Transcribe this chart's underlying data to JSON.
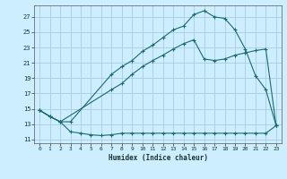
{
  "xlabel": "Humidex (Indice chaleur)",
  "bg_color": "#cceeff",
  "grid_color": "#aaccdd",
  "line_color": "#1a6b6b",
  "xlim": [
    -0.5,
    23.5
  ],
  "ylim": [
    10.5,
    28.5
  ],
  "xticks": [
    0,
    1,
    2,
    3,
    4,
    5,
    6,
    7,
    8,
    9,
    10,
    11,
    12,
    13,
    14,
    15,
    16,
    17,
    18,
    19,
    20,
    21,
    22,
    23
  ],
  "yticks": [
    11,
    13,
    15,
    17,
    19,
    21,
    23,
    25,
    27
  ],
  "line1_x": [
    0,
    1,
    2,
    3,
    4,
    5,
    6,
    7,
    8,
    9,
    10,
    11,
    12,
    13,
    14,
    15,
    16,
    17,
    18,
    19,
    20,
    21,
    22,
    23
  ],
  "line1_y": [
    14.8,
    14.0,
    13.3,
    12.0,
    11.8,
    11.6,
    11.5,
    11.6,
    11.8,
    11.8,
    11.8,
    11.8,
    11.8,
    11.8,
    11.8,
    11.8,
    11.8,
    11.8,
    11.8,
    11.8,
    11.8,
    11.8,
    11.8,
    12.8
  ],
  "line2_x": [
    0,
    1,
    2,
    7,
    8,
    9,
    10,
    11,
    12,
    13,
    14,
    15,
    16,
    17,
    18,
    19,
    20,
    21,
    22,
    23
  ],
  "line2_y": [
    14.8,
    14.0,
    13.3,
    17.5,
    18.3,
    19.5,
    20.5,
    21.3,
    22.0,
    22.8,
    23.5,
    24.0,
    21.5,
    21.3,
    21.5,
    22.0,
    22.3,
    22.6,
    22.8,
    12.8
  ],
  "line3_x": [
    0,
    1,
    2,
    3,
    7,
    8,
    9,
    10,
    11,
    12,
    13,
    14,
    15,
    16,
    17,
    18,
    19,
    20,
    21,
    22,
    23
  ],
  "line3_y": [
    14.8,
    14.0,
    13.3,
    13.3,
    19.5,
    20.5,
    21.3,
    22.5,
    23.3,
    24.3,
    25.3,
    25.8,
    27.3,
    27.8,
    27.0,
    26.8,
    25.3,
    22.8,
    19.3,
    17.5,
    12.8
  ]
}
